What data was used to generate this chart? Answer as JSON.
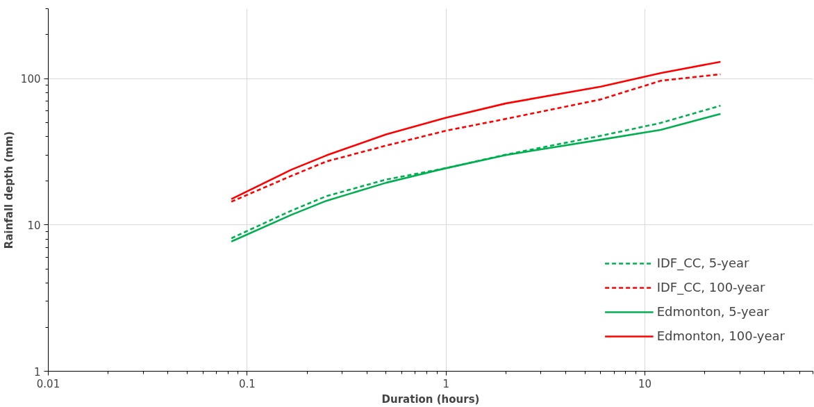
{
  "chart_data": {
    "type": "line",
    "xlabel": "Duration (hours)",
    "ylabel": "Rainfall depth (mm)",
    "log": "xy",
    "xlim": [
      0.01,
      70
    ],
    "ylim": [
      1,
      300
    ],
    "xticks": [
      0.01,
      0.1,
      1,
      10
    ],
    "yticks": [
      1,
      10,
      100
    ],
    "grid": true,
    "legend": "bottom right",
    "marker": "none",
    "x": [
      0.0833,
      0.1667,
      0.25,
      0.5,
      1,
      2,
      6,
      12,
      24
    ],
    "series": [
      {
        "name": "IDF_CC, 5-year",
        "color": "#00b050",
        "line_style": "dashed",
        "values": [
          8.1,
          12.5,
          15.7,
          20.4,
          24.4,
          30.2,
          40.6,
          49.7,
          65.2
        ]
      },
      {
        "name": "IDF_CC, 100-year",
        "color": "#ff0000",
        "line_style": "dashed",
        "values": [
          14.4,
          21.6,
          27.1,
          34.8,
          44,
          53,
          72,
          96.5,
          107
        ]
      },
      {
        "name": "Edmonton, 5-year",
        "color": "#00b050",
        "line_style": "solid",
        "values": [
          7.7,
          11.7,
          14.6,
          19.4,
          24.4,
          30,
          38.2,
          44.6,
          57.3
        ]
      },
      {
        "name": "Edmonton, 100-year",
        "color": "#ff0000",
        "line_style": "solid",
        "values": [
          15,
          23.8,
          29.8,
          41.5,
          54,
          67.6,
          88,
          109,
          130
        ]
      }
    ]
  }
}
